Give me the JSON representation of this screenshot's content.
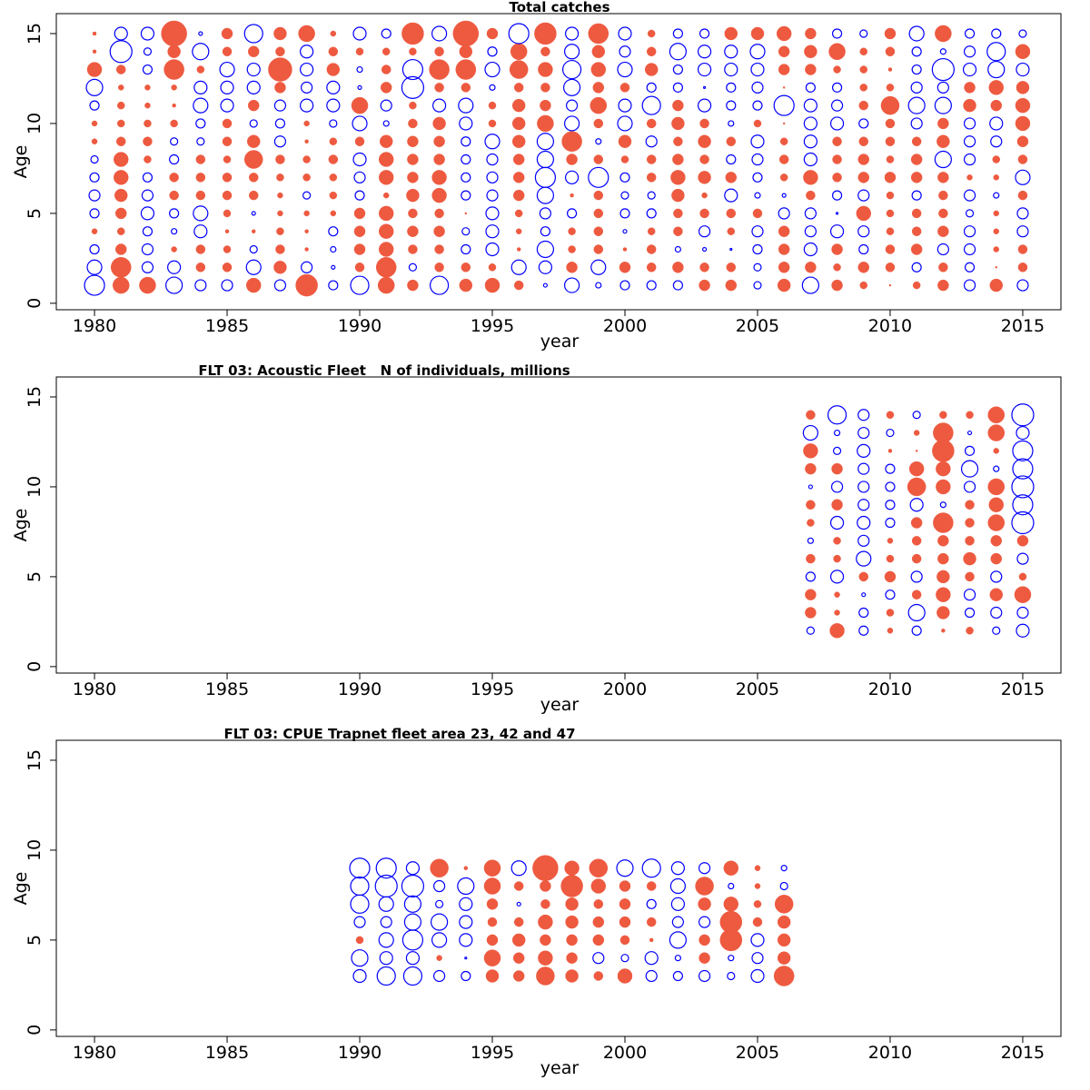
{
  "chart_data": [
    {
      "type": "bubble",
      "title": "Total catches",
      "xlabel": "year",
      "ylabel": "Age",
      "xlim": [
        1978.56,
        2016.44
      ],
      "ylim": [
        -0.36,
        16.11
      ],
      "xticks": [
        1980,
        1985,
        1990,
        1995,
        2000,
        2005,
        2010,
        2015
      ],
      "yticks": [
        0,
        5,
        10,
        15
      ],
      "positive_color": "#ee5a40",
      "negative_color": "#0000ff",
      "x": [
        1980,
        1981,
        1982,
        1983,
        1984,
        1985,
        1986,
        1987,
        1988,
        1989,
        1990,
        1991,
        1992,
        1993,
        1994,
        1995,
        1996,
        1997,
        1998,
        1999,
        2000,
        2001,
        2002,
        2003,
        2004,
        2005,
        2006,
        2007,
        2008,
        2009,
        2010,
        2011,
        2012,
        2013,
        2014,
        2015
      ],
      "y": [
        1,
        2,
        3,
        4,
        5,
        6,
        7,
        8,
        9,
        10,
        11,
        12,
        13,
        14,
        15
      ],
      "values": [
        [
          -2.2,
          -1.6,
          -1,
          0.6,
          -1,
          -1.2,
          -1,
          -0.8,
          0.6,
          0.6,
          -1,
          -1.8,
          1.6,
          0.4,
          0.4
        ],
        [
          1.8,
          2.2,
          1.2,
          0.8,
          1.2,
          1.4,
          1.6,
          1.6,
          1,
          0.8,
          0.8,
          0.6,
          1,
          -2.4,
          -1.4
        ],
        [
          1.8,
          -1.2,
          -1.2,
          -1,
          -1.4,
          -1.2,
          -1,
          0.8,
          1,
          0.8,
          0.6,
          0.6,
          -1,
          -0.8,
          -1.4
        ],
        [
          -1.8,
          -1.4,
          0.6,
          -0.6,
          -1,
          1,
          1,
          -1,
          -0.8,
          0.8,
          0.4,
          0.6,
          2.2,
          1.4,
          2.8
        ],
        [
          -1.2,
          1,
          1,
          -1.4,
          -1.6,
          1,
          1,
          1,
          -0.8,
          -1,
          -1.6,
          -1.4,
          0.8,
          -1.8,
          -0.4
        ],
        [
          -1.2,
          1,
          0.8,
          0.4,
          0.8,
          1,
          1,
          0.8,
          1,
          1,
          -1.4,
          -1.4,
          -1.6,
          1,
          1.2
        ],
        [
          1.6,
          -1.6,
          -0.8,
          0.4,
          -0.4,
          1,
          1,
          2,
          1.4,
          -0.8,
          1.2,
          -1.4,
          -1.4,
          1.2,
          -2
        ],
        [
          -1.2,
          1.4,
          1,
          0.8,
          0.6,
          0.6,
          0.8,
          1,
          -1.2,
          -1,
          -1.2,
          1.2,
          2.6,
          1,
          1.4
        ],
        [
          2.4,
          -1.2,
          0.4,
          0.4,
          0.6,
          -0.8,
          0.8,
          0.8,
          0.4,
          0.6,
          -1.4,
          -1.2,
          -1.4,
          -1.4,
          1.8
        ],
        [
          -1,
          -0.4,
          -0.6,
          -1,
          0.6,
          0.8,
          0.8,
          1,
          0.8,
          -0.8,
          -1.4,
          -1.4,
          1.4,
          1,
          0.6
        ],
        [
          -2,
          1,
          1.2,
          1.2,
          1.2,
          -1,
          -1.2,
          -1.4,
          1,
          -1.6,
          1.8,
          -0.4,
          -0.6,
          0.8,
          -1.4
        ],
        [
          1.8,
          2.2,
          1.6,
          1.6,
          1.6,
          0.6,
          1.6,
          1.6,
          1.4,
          -0.6,
          -1.2,
          1.2,
          1,
          0.8,
          -1
        ],
        [
          1.2,
          -0.8,
          1,
          1.2,
          1,
          1.4,
          1.2,
          1.2,
          1.2,
          1,
          0.8,
          -2.4,
          -2.2,
          0.8,
          2.4
        ],
        [
          -2,
          1,
          1,
          1.2,
          1,
          1.6,
          1.6,
          1.2,
          1.2,
          1.4,
          -1.4,
          1,
          2.2,
          1,
          -1.6
        ],
        [
          1.4,
          1,
          -1,
          -0.8,
          0.2,
          -1,
          -1,
          -1,
          -1,
          -1.4,
          -1.6,
          1,
          2.2,
          1.4,
          2.8
        ],
        [
          1.6,
          0.8,
          -1.4,
          -1.4,
          -1.4,
          -1.2,
          -1.2,
          -1.2,
          -1.6,
          0.8,
          0.8,
          -0.6,
          -1.6,
          -1,
          1.2
        ],
        [
          1,
          -1.6,
          0.4,
          0.6,
          0.8,
          1.2,
          1.2,
          1.2,
          1.4,
          1.4,
          1.4,
          1,
          2,
          1.8,
          -2.2
        ],
        [
          -0.4,
          -1.4,
          -1.8,
          -1,
          -1.2,
          -1.8,
          -2.2,
          -1.8,
          -1.8,
          1.8,
          1.2,
          1,
          1.6,
          1,
          2.4
        ],
        [
          -1.6,
          1.2,
          0.8,
          0.8,
          -1,
          0.4,
          -1.4,
          1.2,
          2.2,
          -1.6,
          -1.2,
          -1.8,
          -2,
          -1.6,
          -1.4
        ],
        [
          -0.6,
          -1.6,
          1,
          1,
          1,
          1,
          -2.2,
          1,
          -0.6,
          1,
          1.8,
          1.2,
          1.6,
          1.4,
          2.2
        ],
        [
          -1,
          1.2,
          0.4,
          -0.4,
          -1,
          -0.8,
          -1,
          0.8,
          1.4,
          -1.6,
          -1.4,
          1,
          -1.6,
          -1.2,
          -1.4
        ],
        [
          -1,
          1,
          1,
          0.8,
          -1,
          -0.8,
          1,
          1,
          -1.2,
          1,
          -2,
          -1,
          1.4,
          1,
          0.8
        ],
        [
          -1,
          1.2,
          -0.6,
          1,
          1,
          1.4,
          1.6,
          1.2,
          1,
          1.4,
          1.2,
          -1,
          -1,
          -1.8,
          -1
        ],
        [
          1.2,
          1,
          -0.4,
          -1.2,
          1,
          0.6,
          1.4,
          1,
          1.4,
          1,
          -1.4,
          -0.2,
          -1.4,
          -1.4,
          -1
        ],
        [
          1.2,
          1,
          -0.2,
          0.8,
          1,
          -1.4,
          1.2,
          -1,
          1,
          -0.6,
          -1,
          -1,
          -1.4,
          -1.4,
          1.4
        ],
        [
          -0.8,
          -0.8,
          -1,
          -1.2,
          1,
          -0.6,
          -1,
          -1.2,
          -1.4,
          0.8,
          -1,
          -1.2,
          -1.4,
          -1.6,
          1.4
        ],
        [
          1.4,
          1.2,
          1.2,
          1.2,
          -1.2,
          -0.4,
          0.8,
          1,
          0.8,
          0.2,
          -2.2,
          0.2,
          1.2,
          1.2,
          1.6
        ],
        [
          -1.8,
          1.2,
          -1.4,
          -1.2,
          -1.2,
          1,
          1.6,
          -1.4,
          -1.4,
          -1.4,
          -1.4,
          -1,
          1.2,
          1.4,
          1.2
        ],
        [
          1.2,
          0.8,
          1.2,
          -1.4,
          -0.2,
          -1,
          1,
          1,
          1,
          -1.4,
          -1.2,
          -1,
          0.8,
          1.8,
          -1
        ],
        [
          0.8,
          1.2,
          -1,
          -1.2,
          1.6,
          -1.2,
          1.2,
          1.2,
          1,
          -1,
          1,
          0.8,
          0.8,
          0.8,
          -0.8
        ],
        [
          0.2,
          1,
          1,
          0.8,
          0.8,
          0.8,
          1.2,
          0.8,
          1,
          1,
          2,
          0.8,
          0.4,
          1,
          1.2
        ],
        [
          0.8,
          -1,
          1.2,
          1,
          1,
          -1,
          1.2,
          1.2,
          1,
          -1.2,
          -1.8,
          -1.2,
          -1,
          -1,
          -1.6
        ],
        [
          1.2,
          1,
          -1.2,
          1.2,
          1,
          1,
          1.2,
          -1.8,
          1.4,
          1.2,
          -1.8,
          -1.2,
          -2.4,
          -0.6,
          1.8
        ],
        [
          -1.2,
          -1,
          -1.2,
          -1.2,
          -0.8,
          -1.2,
          0.6,
          -1.2,
          -1.2,
          -1.2,
          1.4,
          1.2,
          -1.4,
          -1.2,
          -1
        ],
        [
          1.4,
          0.2,
          0.6,
          0.6,
          0.6,
          -0.6,
          0.6,
          0.8,
          -1.2,
          -1.4,
          1.2,
          1.6,
          -1.8,
          -2,
          -1
        ],
        [
          -1.2,
          1,
          1,
          -1.2,
          -1.2,
          1,
          -1.6,
          1,
          1.2,
          1.6,
          1.6,
          1.4,
          -1.4,
          1.6,
          -0.8
        ]
      ]
    },
    {
      "type": "bubble",
      "title": "FLT 03: Acoustic Fleet   N of individuals, millions",
      "xlabel": "year",
      "ylabel": "Age",
      "xlim": [
        1978.56,
        2016.44
      ],
      "ylim": [
        -0.36,
        16.11
      ],
      "xticks": [
        1980,
        1985,
        1990,
        1995,
        2000,
        2005,
        2010,
        2015
      ],
      "yticks": [
        0,
        5,
        10,
        15
      ],
      "positive_color": "#ee5a40",
      "negative_color": "#0000ff",
      "x": [
        2007,
        2008,
        2009,
        2010,
        2011,
        2012,
        2013,
        2014,
        2015
      ],
      "y": [
        2,
        3,
        4,
        5,
        6,
        7,
        8,
        9,
        10,
        11,
        12,
        13,
        14
      ],
      "values": [
        [
          -0.8,
          1.2,
          1.2,
          -1,
          1,
          -0.6,
          0.8,
          1,
          -0.4,
          1.2,
          1.6,
          -1.6,
          1
        ],
        [
          1.6,
          0.6,
          0.6,
          -1.4,
          0.8,
          0.8,
          -1.4,
          1.2,
          -1.2,
          1.2,
          -0.8,
          -0.6,
          -2
        ],
        [
          -1,
          -1,
          -0.4,
          1,
          -1.6,
          -1.2,
          -1.4,
          -1.2,
          -1.2,
          -1.2,
          -1.4,
          -1.2,
          -1.2
        ],
        [
          0.6,
          0.8,
          -1,
          1.2,
          0.8,
          0.6,
          -1,
          -1,
          -1,
          -1,
          0.4,
          -0.8,
          0.8
        ],
        [
          -1,
          -1.8,
          1,
          -1.2,
          1,
          1,
          1.2,
          -1.4,
          2,
          1.6,
          0.2,
          0.6,
          -0.8
        ],
        [
          0.4,
          1.4,
          1.6,
          1.4,
          1.2,
          1.2,
          2.2,
          -0.6,
          1.6,
          1.6,
          2.4,
          2.2,
          0.8
        ],
        [
          0.8,
          -1,
          -1.2,
          1,
          1.4,
          1,
          1,
          1,
          -1.2,
          -1.8,
          -1,
          -0.4,
          0.8
        ],
        [
          -0.8,
          -1.2,
          1.4,
          -1.2,
          1.2,
          1.2,
          1.8,
          1.6,
          1.8,
          -0.6,
          0.6,
          1.8,
          1.8
        ],
        [
          -1.4,
          -1.2,
          1.8,
          0.8,
          -1.2,
          1.2,
          -2.4,
          -2.2,
          -2.4,
          -2.2,
          -2.2,
          -1.4,
          -2.4
        ]
      ]
    },
    {
      "type": "bubble",
      "title": "FLT 03: CPUE Trapnet fleet area 23, 42 and 47",
      "xlabel": "year",
      "ylabel": "Age",
      "xlim": [
        1978.56,
        2016.44
      ],
      "ylim": [
        -0.36,
        16.11
      ],
      "xticks": [
        1980,
        1985,
        1990,
        1995,
        2000,
        2005,
        2010,
        2015
      ],
      "yticks": [
        0,
        5,
        10,
        15
      ],
      "positive_color": "#ee5a40",
      "negative_color": "#0000ff",
      "x": [
        1990,
        1991,
        1992,
        1993,
        1994,
        1995,
        1996,
        1997,
        1998,
        1999,
        2000,
        2001,
        2002,
        2003,
        2004,
        2005,
        2006
      ],
      "y": [
        3,
        4,
        5,
        6,
        7,
        8,
        9
      ],
      "values": [
        [
          -1.4,
          -1.8,
          0.8,
          -1.2,
          -2,
          -2,
          -2.2
        ],
        [
          -2,
          -1.4,
          -1.6,
          -1.2,
          -1.6,
          -2.4,
          -2.2
        ],
        [
          -2,
          -1.4,
          -2.2,
          -1.8,
          -1.8,
          -2.4,
          -1.4
        ],
        [
          -1.2,
          0.6,
          -1.6,
          -1.8,
          -0.8,
          -1.2,
          2
        ],
        [
          -1,
          -0.2,
          -1.4,
          -1.4,
          -1.4,
          -1.8,
          0.4
        ],
        [
          1.4,
          1.8,
          1.2,
          1,
          1.2,
          1.8,
          1.8
        ],
        [
          1.2,
          1.2,
          1.4,
          1,
          -0.4,
          1,
          -1.6
        ],
        [
          2,
          1.6,
          1.2,
          1.6,
          1,
          1.2,
          2.8
        ],
        [
          1.4,
          1.2,
          1.2,
          1.4,
          1.4,
          2.4,
          1.6
        ],
        [
          1,
          -1.2,
          1.2,
          1.2,
          1,
          1.6,
          2
        ],
        [
          1.6,
          -0.8,
          1,
          1.2,
          1.2,
          1.2,
          -1.8
        ],
        [
          -1.2,
          -1.4,
          0.4,
          1,
          -1,
          1,
          -2
        ],
        [
          -1,
          -0.6,
          -1.8,
          -1.2,
          -1.4,
          -1.6,
          -1.4
        ],
        [
          -1.2,
          1.2,
          1.2,
          -1.2,
          1.4,
          2,
          -1.2
        ],
        [
          -0.8,
          -0.6,
          2.4,
          2.4,
          1.6,
          -0.6,
          1.6
        ],
        [
          -1.4,
          -1.2,
          -1.4,
          1,
          0.8,
          0.6,
          0.6
        ],
        [
          2.2,
          1.4,
          1.4,
          1.4,
          2,
          -0.8,
          -0.6
        ]
      ]
    }
  ]
}
